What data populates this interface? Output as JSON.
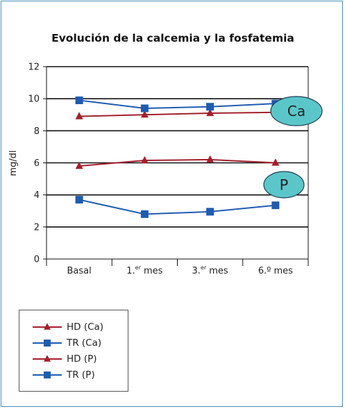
{
  "chart_data": {
    "type": "line",
    "title": "Evolución de la calcemia y la fosfatemia",
    "ylabel": "mg/dl",
    "xlabel": "",
    "ylim": [
      0,
      12
    ],
    "yticks": [
      "0",
      "2",
      "4",
      "6",
      "8",
      "10",
      "12"
    ],
    "categories": [
      {
        "main": "Basal",
        "sup": "",
        "suffix": ""
      },
      {
        "main": "1.",
        "sup": "er",
        "suffix": " mes"
      },
      {
        "main": "3.",
        "sup": "er",
        "suffix": " mes"
      },
      {
        "main": "6.º mes",
        "sup": "",
        "suffix": ""
      }
    ],
    "series": [
      {
        "name": "HD (Ca)",
        "marker": "triangle",
        "color": "#a31f2b",
        "values": [
          8.9,
          9.0,
          9.1,
          9.15
        ]
      },
      {
        "name": "TR (Ca)",
        "marker": "square",
        "color": "#1f5bb0",
        "values": [
          9.9,
          9.4,
          9.5,
          9.7
        ]
      },
      {
        "name": "HD (P)",
        "marker": "triangle",
        "color": "#a31f2b",
        "values": [
          5.8,
          6.15,
          6.2,
          6.0
        ]
      },
      {
        "name": "TR (P)",
        "marker": "square",
        "color": "#1f5bb0",
        "values": [
          3.7,
          2.8,
          2.95,
          3.35
        ]
      }
    ],
    "annotations": [
      {
        "text": "Ca",
        "color": "#5bc6c9"
      },
      {
        "text": "P",
        "color": "#5bc6c9"
      }
    ],
    "grid": "horizontal",
    "legend": "bottom-left"
  }
}
